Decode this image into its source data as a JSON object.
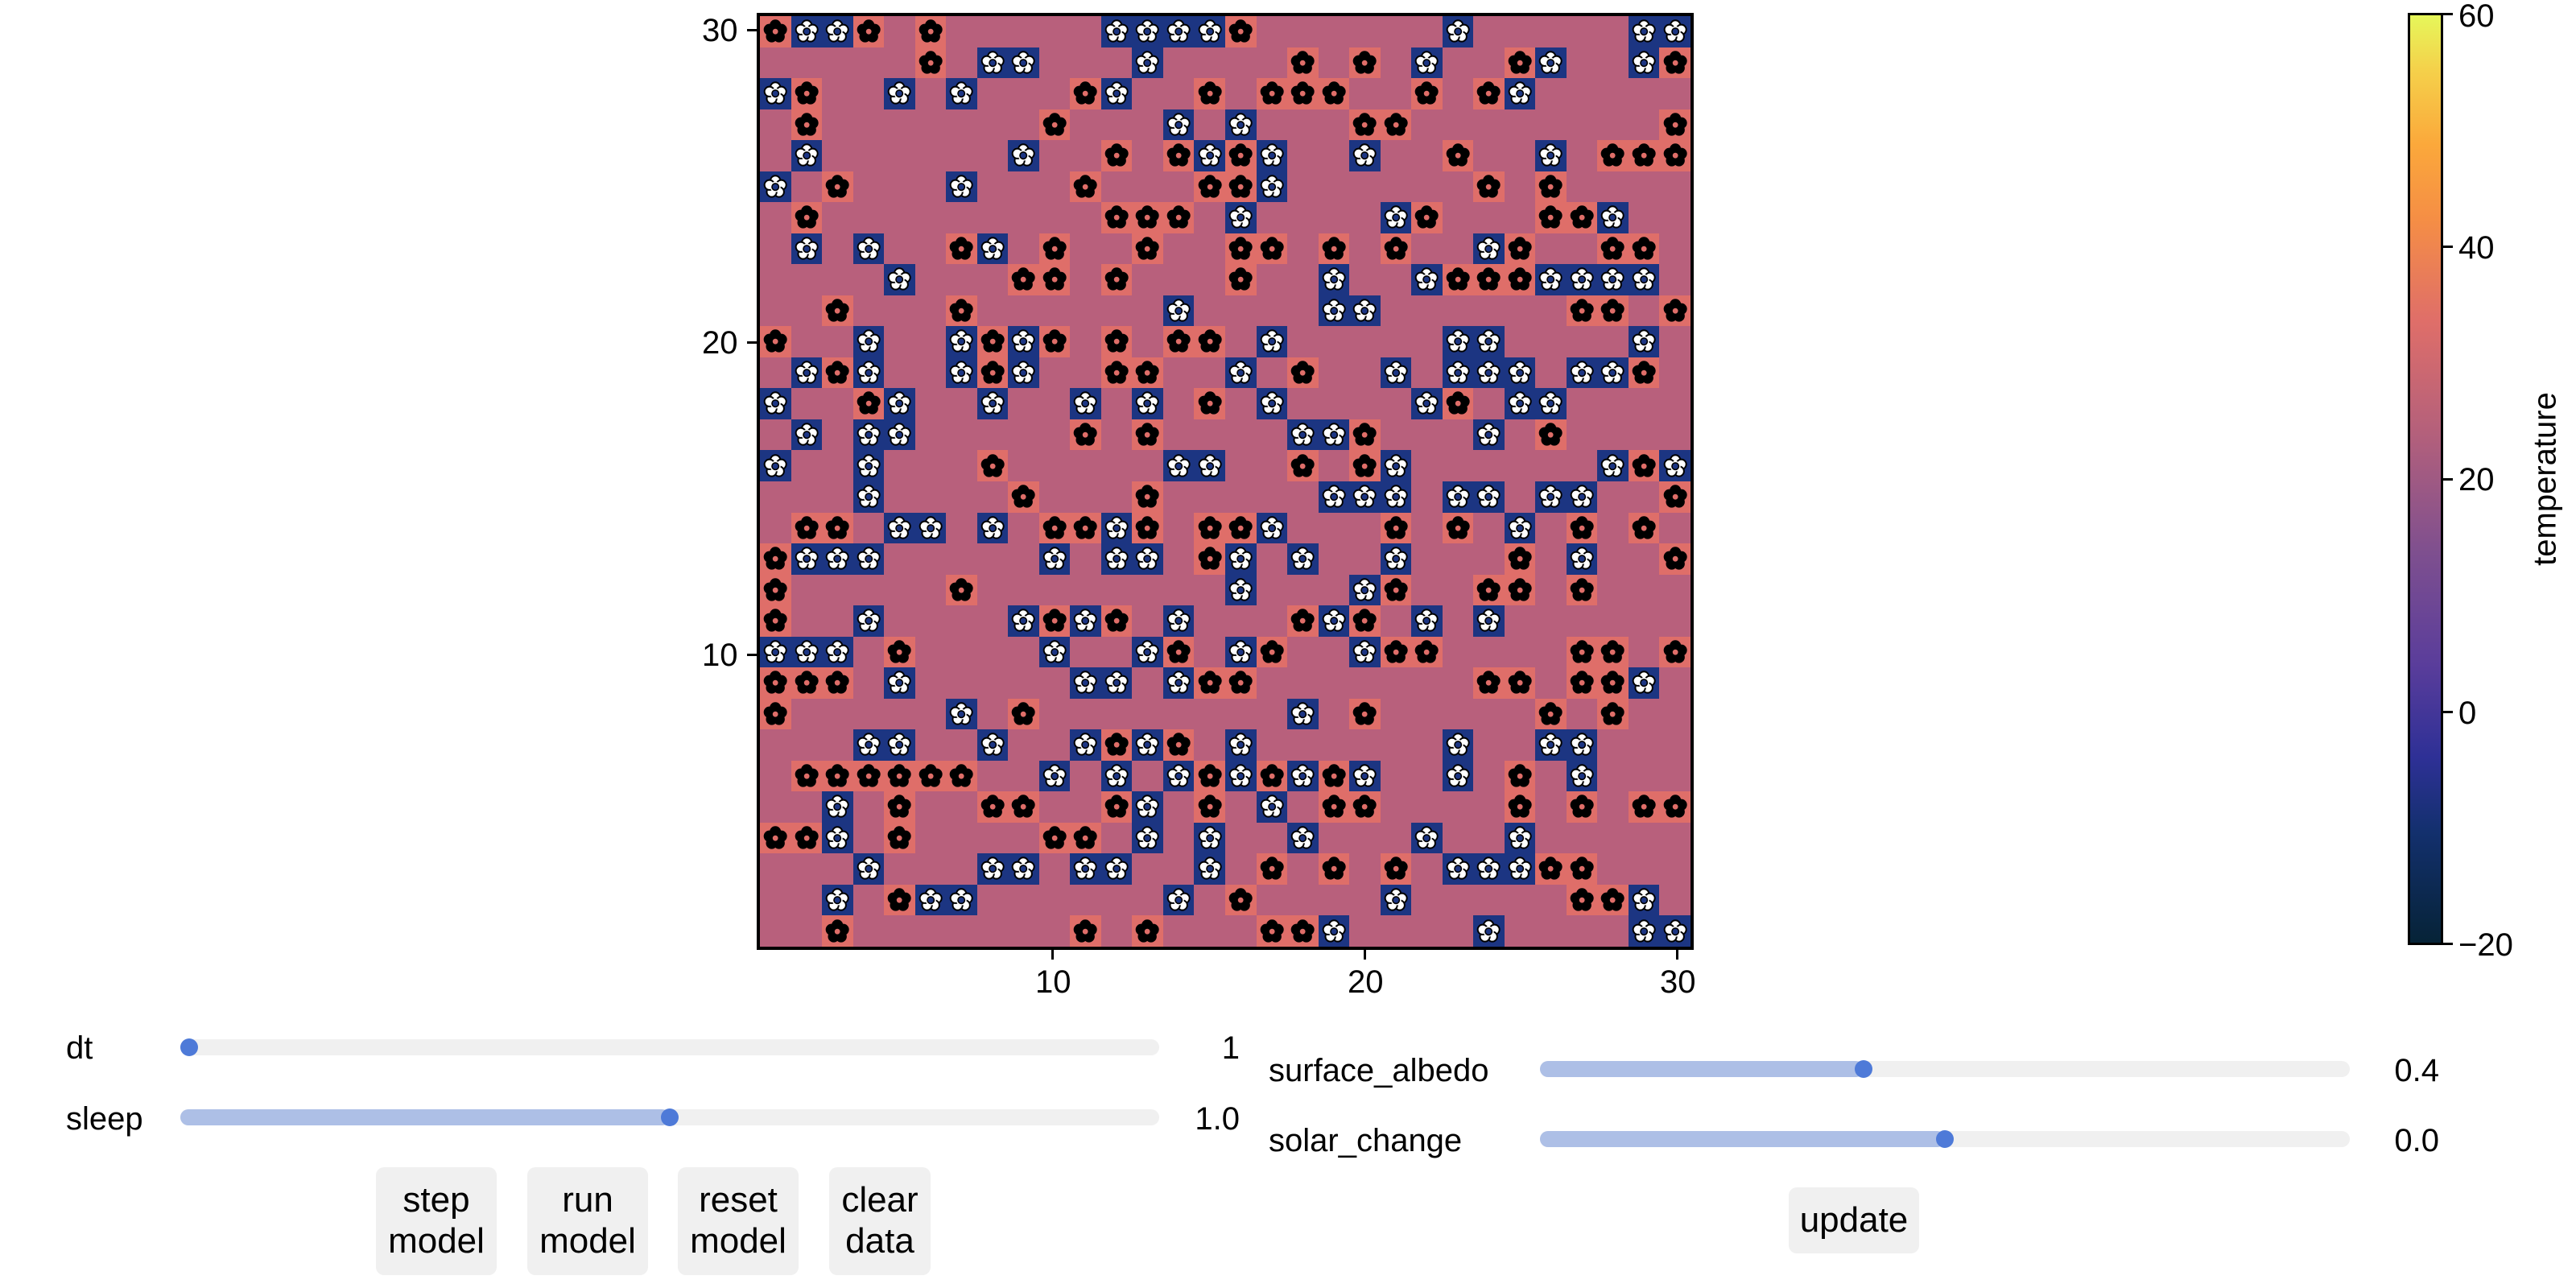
{
  "chart_data": {
    "type": "heatmap",
    "title": "",
    "xlabel": "",
    "ylabel": "",
    "x_ticks": [
      10,
      20,
      30
    ],
    "y_ticks": [
      10,
      20,
      30
    ],
    "xlim": [
      1,
      30
    ],
    "ylim": [
      1,
      30
    ],
    "grid_size": [
      30,
      30
    ],
    "legend": {
      "B": "black daisy (on coral cell)",
      "W": "white daisy (on navy cell)",
      ".": "empty ground"
    },
    "cell_colors": {
      "B": "#df6e69",
      "W": "#1c3582",
      ".": "#b8607c"
    },
    "rows_top_to_bottom": [
      "BWWB.B.....WWWWB......W.....WW",
      ".....B.WW...W....B.B.W..BW..WB",
      "WB..W.W...BW..B.BBB..B.BW.....",
      ".B.......B...W.W...BB........B",
      ".W......W..B.BWBW..W..B..W.BBB",
      "W.B...W...B...BBW......B.B....",
      ".B.........BBB.W....WB...BBW..",
      ".W.W..BW.B..B..BB.B.B..WB..BB.",
      "....W...BB.B...B..W..WBBBWWWW.",
      "..B...B......W....WW......BB.B",
      "B..W..WBWB.B.BB.W.....WW....W.",
      ".WBW..WBW..BB..W.B..W.WWW.WWB.",
      "W..BW..W..W.W.B.W....WB.WW....",
      ".W.WW.....B.B....WWB...W.B....",
      "W..W...B.....WW..B.BW......WBW",
      "...W....B...B.....WWW.WW.WW..B",
      ".BB.WW.W.BBWB.BBW...B.B.W.B.B.",
      "BWWW.....W.WW.BW.W..W...B.W..B",
      "B.....B........W...WB..BB.B...",
      "B..W....WBWB.W...BWB.W.W......",
      "WWW.B....W..WB.WB..WBB....BB.B",
      "BBB.W.....WW.WBB.......BB.BBW.",
      "B.....W.B........W.B.....B.B..",
      "...WW..W..WBWB.W......W..WW...",
      ".BBBBBB..W.W.WBWBWBW..W.B.W...",
      "..W.B..BB..BW.B.W.BB....B.B.BB",
      "BBW.B....BB.W.W..W...W..W.....",
      "...W...WW.WW..W.B.B.B.WWWBB...",
      "..W.BWW......W.B....W.....BBW.",
      "..B.......B.B...BBW....W....WW"
    ],
    "colorbar": {
      "label": "temperature",
      "range": [
        -20,
        60
      ],
      "ticks": [
        -20,
        0,
        20,
        40,
        60
      ],
      "colormap": "thermal/plasma-like (dark navy → purple → pink → orange → yellow)"
    }
  },
  "plot": {
    "x_tick_labels": [
      "10",
      "20",
      "30"
    ],
    "y_tick_labels": [
      "10",
      "20",
      "30"
    ],
    "colorbar_tick_labels": [
      "60",
      "40",
      "20",
      "0",
      "−20"
    ],
    "colorbar_title": "temperature"
  },
  "controls": {
    "left_sliders": [
      {
        "label": "dt",
        "value": "1",
        "fraction": 0.0
      },
      {
        "label": "sleep",
        "value": "1.0",
        "fraction": 0.5
      }
    ],
    "right_sliders": [
      {
        "label": "surface_albedo",
        "value": "0.4",
        "fraction": 0.4
      },
      {
        "label": "solar_change",
        "value": "0.0",
        "fraction": 0.5
      }
    ],
    "buttons": [
      {
        "line1": "step",
        "line2": "model"
      },
      {
        "line1": "run",
        "line2": "model"
      },
      {
        "line1": "reset",
        "line2": "model"
      },
      {
        "line1": "clear",
        "line2": "data"
      }
    ],
    "update_button": "update"
  },
  "colors": {
    "slider_track": "#f0f0f0",
    "slider_fill": "#adbfe6",
    "slider_knob": "#4e7ad8",
    "button_bg": "#f0f0f0"
  }
}
